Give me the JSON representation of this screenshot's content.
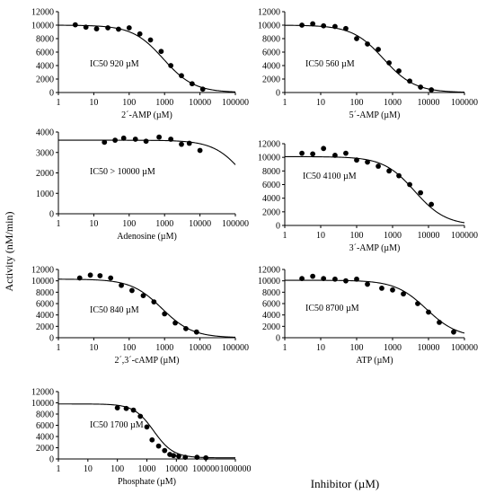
{
  "y_axis_label": "Activity (nM/min)",
  "x_axis_label": "Inhibitor (µM)",
  "chart_data": [
    {
      "type": "scatter",
      "xscale": "log",
      "xlim": [
        1,
        100000
      ],
      "ylim": [
        0,
        12000
      ],
      "x_ticks": [
        1,
        10,
        100,
        1000,
        10000,
        100000
      ],
      "x_tick_labels": [
        "1",
        "10",
        "100",
        "1000",
        "10000",
        "100000"
      ],
      "y_ticks": [
        0,
        2000,
        4000,
        6000,
        8000,
        10000,
        12000
      ],
      "y_tick_labels": [
        "0",
        "2000",
        "4000",
        "6000",
        "8000",
        "10000",
        "12000"
      ],
      "xlabel": "2´-AMP (µM)",
      "annotation": "IC50 920 µM",
      "points": [
        [
          3,
          10050
        ],
        [
          6,
          9700
        ],
        [
          12,
          9450
        ],
        [
          25,
          9600
        ],
        [
          50,
          9400
        ],
        [
          100,
          9600
        ],
        [
          200,
          8700
        ],
        [
          400,
          7800
        ],
        [
          800,
          6100
        ],
        [
          1500,
          4000
        ],
        [
          3000,
          2500
        ],
        [
          6000,
          1300
        ],
        [
          12000,
          500
        ]
      ],
      "fit": {
        "top": 10000,
        "bottom": 0,
        "ic50": 920,
        "hill": 1.0
      }
    },
    {
      "type": "scatter",
      "xscale": "log",
      "xlim": [
        1,
        100000
      ],
      "ylim": [
        0,
        12000
      ],
      "x_ticks": [
        1,
        10,
        100,
        1000,
        10000,
        100000
      ],
      "x_tick_labels": [
        "1",
        "10",
        "100",
        "1000",
        "10000",
        "100000"
      ],
      "y_ticks": [
        0,
        2000,
        4000,
        6000,
        8000,
        10000,
        12000
      ],
      "y_tick_labels": [
        "0",
        "2000",
        "4000",
        "6000",
        "8000",
        "10000",
        "12000"
      ],
      "xlabel": "5´-AMP (µM)",
      "annotation": "IC50 560 µM",
      "points": [
        [
          3,
          10000
        ],
        [
          6,
          10200
        ],
        [
          12,
          9900
        ],
        [
          25,
          9800
        ],
        [
          50,
          9500
        ],
        [
          100,
          8000
        ],
        [
          200,
          7200
        ],
        [
          400,
          6400
        ],
        [
          800,
          4400
        ],
        [
          1500,
          3200
        ],
        [
          3000,
          1700
        ],
        [
          6000,
          800
        ],
        [
          12000,
          400
        ]
      ],
      "fit": {
        "top": 10000,
        "bottom": 0,
        "ic50": 560,
        "hill": 1.0
      }
    },
    {
      "type": "scatter",
      "xscale": "log",
      "xlim": [
        1,
        100000
      ],
      "ylim": [
        0,
        4000
      ],
      "x_ticks": [
        1,
        10,
        100,
        1000,
        10000,
        100000
      ],
      "x_tick_labels": [
        "1",
        "10",
        "100",
        "1000",
        "10000",
        "100000"
      ],
      "y_ticks": [
        0,
        1000,
        2000,
        3000,
        4000
      ],
      "y_tick_labels": [
        "0",
        "1000",
        "2000",
        "3000",
        "4000"
      ],
      "xlabel": "Adenosine (µM)",
      "annotation": "IC50 > 10000 µM",
      "points": [
        [
          20,
          3500
        ],
        [
          40,
          3600
        ],
        [
          70,
          3700
        ],
        [
          150,
          3650
        ],
        [
          300,
          3550
        ],
        [
          700,
          3750
        ],
        [
          1500,
          3650
        ],
        [
          3000,
          3400
        ],
        [
          5000,
          3450
        ],
        [
          10000,
          3100
        ]
      ],
      "fit": {
        "top": 3600,
        "bottom": 0,
        "ic50": 200000,
        "hill": 1.0
      }
    },
    {
      "type": "scatter",
      "xscale": "log",
      "xlim": [
        1,
        100000
      ],
      "ylim": [
        0,
        12000
      ],
      "x_ticks": [
        1,
        10,
        100,
        1000,
        10000,
        100000
      ],
      "x_tick_labels": [
        "1",
        "10",
        "100",
        "1000",
        "10000",
        "100000"
      ],
      "y_ticks": [
        0,
        2000,
        4000,
        6000,
        8000,
        10000,
        12000
      ],
      "y_tick_labels": [
        "0",
        "2000",
        "4000",
        "6000",
        "8000",
        "10000",
        "12000"
      ],
      "xlabel": "3´-AMP (µM)",
      "annotation": "IC50 4100 µM",
      "points": [
        [
          3,
          10600
        ],
        [
          6,
          10500
        ],
        [
          12,
          11300
        ],
        [
          25,
          10300
        ],
        [
          50,
          10600
        ],
        [
          100,
          9600
        ],
        [
          200,
          9300
        ],
        [
          400,
          8700
        ],
        [
          800,
          8000
        ],
        [
          1500,
          7300
        ],
        [
          3000,
          6000
        ],
        [
          6000,
          4800
        ],
        [
          12000,
          3100
        ]
      ],
      "fit": {
        "top": 10100,
        "bottom": 0,
        "ic50": 4100,
        "hill": 1.0
      }
    },
    {
      "type": "scatter",
      "xscale": "log",
      "xlim": [
        1,
        100000
      ],
      "ylim": [
        0,
        12000
      ],
      "x_ticks": [
        1,
        10,
        100,
        1000,
        10000,
        100000
      ],
      "x_tick_labels": [
        "1",
        "10",
        "100",
        "1000",
        "10000",
        "100000"
      ],
      "y_ticks": [
        0,
        2000,
        4000,
        6000,
        8000,
        10000,
        12000
      ],
      "y_tick_labels": [
        "0",
        "2000",
        "4000",
        "6000",
        "8000",
        "10000",
        "12000"
      ],
      "xlabel": "2´,3´-cAMP (µM)",
      "annotation": "IC50 840 µM",
      "points": [
        [
          4,
          10500
        ],
        [
          8,
          11000
        ],
        [
          15,
          10900
        ],
        [
          30,
          10500
        ],
        [
          60,
          9200
        ],
        [
          120,
          8300
        ],
        [
          250,
          7400
        ],
        [
          500,
          6300
        ],
        [
          1000,
          4200
        ],
        [
          2000,
          2600
        ],
        [
          4000,
          1600
        ],
        [
          8000,
          1000
        ]
      ],
      "fit": {
        "top": 10300,
        "bottom": 0,
        "ic50": 840,
        "hill": 1.0
      }
    },
    {
      "type": "scatter",
      "xscale": "log",
      "xlim": [
        1,
        100000
      ],
      "ylim": [
        0,
        12000
      ],
      "x_ticks": [
        1,
        10,
        100,
        1000,
        10000,
        100000
      ],
      "x_tick_labels": [
        "1",
        "10",
        "100",
        "1000",
        "10000",
        "100000"
      ],
      "y_ticks": [
        0,
        2000,
        4000,
        6000,
        8000,
        10000,
        12000
      ],
      "y_tick_labels": [
        "0",
        "2000",
        "4000",
        "6000",
        "8000",
        "10000",
        "12000"
      ],
      "xlabel": "ATP (µM)",
      "annotation": "IC50 8700 µM",
      "points": [
        [
          3,
          10400
        ],
        [
          6,
          10800
        ],
        [
          12,
          10400
        ],
        [
          25,
          10300
        ],
        [
          50,
          10000
        ],
        [
          100,
          10300
        ],
        [
          200,
          9400
        ],
        [
          500,
          8700
        ],
        [
          1000,
          8400
        ],
        [
          2000,
          7700
        ],
        [
          5000,
          6000
        ],
        [
          10000,
          4500
        ],
        [
          20000,
          2700
        ],
        [
          50000,
          1000
        ]
      ],
      "fit": {
        "top": 10100,
        "bottom": 0,
        "ic50": 8700,
        "hill": 1.0
      }
    },
    {
      "type": "scatter",
      "xscale": "log",
      "xlim": [
        1,
        1000000
      ],
      "ylim": [
        0,
        12000
      ],
      "x_ticks": [
        1,
        10,
        100,
        1000,
        10000,
        100000,
        1000000
      ],
      "x_tick_labels": [
        "1",
        "10",
        "100",
        "1000",
        "10000",
        "100000",
        "1000000"
      ],
      "y_ticks": [
        0,
        2000,
        4000,
        6000,
        8000,
        10000,
        12000
      ],
      "y_tick_labels": [
        "0",
        "2000",
        "4000",
        "6000",
        "8000",
        "10000",
        "12000"
      ],
      "xlabel": "Phosphate (µM)",
      "annotation": "IC50 1700 µM",
      "points": [
        [
          100,
          9100
        ],
        [
          200,
          9000
        ],
        [
          350,
          8700
        ],
        [
          600,
          7600
        ],
        [
          1000,
          5700
        ],
        [
          1500,
          3400
        ],
        [
          2500,
          2300
        ],
        [
          4000,
          1500
        ],
        [
          6000,
          800
        ],
        [
          8000,
          600
        ],
        [
          12000,
          500
        ],
        [
          20000,
          300
        ],
        [
          50000,
          300
        ],
        [
          100000,
          200
        ]
      ],
      "fit": {
        "top": 9800,
        "bottom": 200,
        "ic50": 1700,
        "hill": 1.3
      }
    }
  ]
}
